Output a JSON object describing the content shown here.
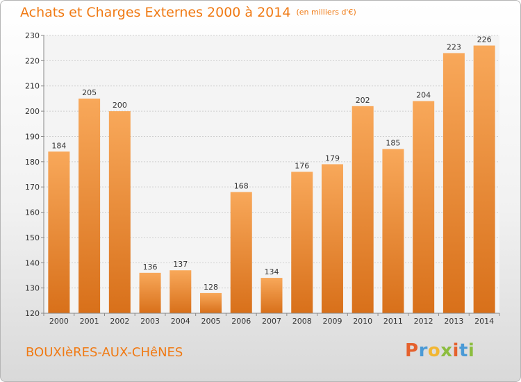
{
  "header": {
    "title": "Achats et Charges Externes 2000 à 2014",
    "unit": "(en milliers d'€)"
  },
  "footer": {
    "city": "BOUXIèRES-AUX-CHêNES",
    "brand_letters": [
      "P",
      "r",
      "o",
      "x",
      "i",
      "t",
      "i"
    ],
    "brand_colors": [
      "#e5612d",
      "#4a9ad6",
      "#f2b632",
      "#8cbd3f",
      "#e5612d",
      "#4a9ad6",
      "#8cbd3f"
    ]
  },
  "colors": {
    "bar_light": "#f8a85a",
    "bar_dark": "#d8701a",
    "accent": "#f07a14"
  },
  "chart_data": {
    "type": "bar",
    "categories": [
      "2000",
      "2001",
      "2002",
      "2003",
      "2004",
      "2005",
      "2006",
      "2007",
      "2008",
      "2009",
      "2010",
      "2011",
      "2012",
      "2013",
      "2014"
    ],
    "values": [
      184,
      205,
      200,
      136,
      137,
      128,
      168,
      134,
      176,
      179,
      202,
      185,
      204,
      223,
      226
    ],
    "title": "Achats et Charges Externes 2000 à 2014",
    "ylim": [
      120,
      230
    ],
    "yticks": [
      120,
      130,
      140,
      150,
      160,
      170,
      180,
      190,
      200,
      210,
      220,
      230
    ],
    "grid": true
  }
}
